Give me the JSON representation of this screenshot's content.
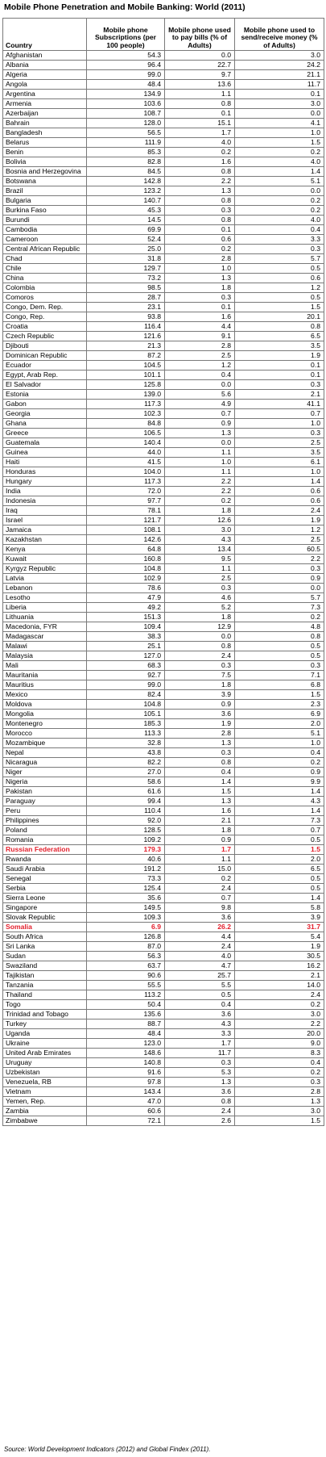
{
  "title": "Mobile Phone Penetration and Mobile Banking: World (2011)",
  "headers": {
    "country": "Country",
    "subs": "Mobile phone Subscriptions (per 100 people)",
    "bills": "Mobile phone used to pay bills (% of Adults)",
    "money": "Mobile phone used to send/receive money (% of Adults)"
  },
  "highlight_color": "#e3202d",
  "rows": [
    {
      "c": "Afghanistan",
      "s": "54.3",
      "b": "0.0",
      "m": "3.0"
    },
    {
      "c": "Albania",
      "s": "96.4",
      "b": "22.7",
      "m": "24.2"
    },
    {
      "c": "Algeria",
      "s": "99.0",
      "b": "9.7",
      "m": "21.1"
    },
    {
      "c": "Angola",
      "s": "48.4",
      "b": "13.6",
      "m": "11.7"
    },
    {
      "c": "Argentina",
      "s": "134.9",
      "b": "1.1",
      "m": "0.1"
    },
    {
      "c": "Armenia",
      "s": "103.6",
      "b": "0.8",
      "m": "3.0"
    },
    {
      "c": "Azerbaijan",
      "s": "108.7",
      "b": "0.1",
      "m": "0.0"
    },
    {
      "c": "Bahrain",
      "s": "128.0",
      "b": "15.1",
      "m": "4.1"
    },
    {
      "c": "Bangladesh",
      "s": "56.5",
      "b": "1.7",
      "m": "1.0"
    },
    {
      "c": "Belarus",
      "s": "111.9",
      "b": "4.0",
      "m": "1.5"
    },
    {
      "c": "Benin",
      "s": "85.3",
      "b": "0.2",
      "m": "0.2"
    },
    {
      "c": "Bolivia",
      "s": "82.8",
      "b": "1.6",
      "m": "4.0"
    },
    {
      "c": "Bosnia and Herzegovina",
      "s": "84.5",
      "b": "0.8",
      "m": "1.4"
    },
    {
      "c": "Botswana",
      "s": "142.8",
      "b": "2.2",
      "m": "5.1"
    },
    {
      "c": "Brazil",
      "s": "123.2",
      "b": "1.3",
      "m": "0.0"
    },
    {
      "c": "Bulgaria",
      "s": "140.7",
      "b": "0.8",
      "m": "0.2"
    },
    {
      "c": "Burkina Faso",
      "s": "45.3",
      "b": "0.3",
      "m": "0.2"
    },
    {
      "c": "Burundi",
      "s": "14.5",
      "b": "0.8",
      "m": "4.0"
    },
    {
      "c": "Cambodia",
      "s": "69.9",
      "b": "0.1",
      "m": "0.4"
    },
    {
      "c": "Cameroon",
      "s": "52.4",
      "b": "0.6",
      "m": "3.3"
    },
    {
      "c": "Central African Republic",
      "s": "25.0",
      "b": "0.2",
      "m": "0.3"
    },
    {
      "c": "Chad",
      "s": "31.8",
      "b": "2.8",
      "m": "5.7"
    },
    {
      "c": "Chile",
      "s": "129.7",
      "b": "1.0",
      "m": "0.5"
    },
    {
      "c": "China",
      "s": "73.2",
      "b": "1.3",
      "m": "0.6"
    },
    {
      "c": "Colombia",
      "s": "98.5",
      "b": "1.8",
      "m": "1.2"
    },
    {
      "c": "Comoros",
      "s": "28.7",
      "b": "0.3",
      "m": "0.5"
    },
    {
      "c": "Congo, Dem. Rep.",
      "s": "23.1",
      "b": "0.1",
      "m": "1.5"
    },
    {
      "c": "Congo, Rep.",
      "s": "93.8",
      "b": "1.6",
      "m": "20.1"
    },
    {
      "c": "Croatia",
      "s": "116.4",
      "b": "4.4",
      "m": "0.8"
    },
    {
      "c": "Czech Republic",
      "s": "121.6",
      "b": "9.1",
      "m": "6.5"
    },
    {
      "c": "Djibouti",
      "s": "21.3",
      "b": "2.8",
      "m": "3.5"
    },
    {
      "c": "Dominican Republic",
      "s": "87.2",
      "b": "2.5",
      "m": "1.9"
    },
    {
      "c": "Ecuador",
      "s": "104.5",
      "b": "1.2",
      "m": "0.1"
    },
    {
      "c": "Egypt, Arab Rep.",
      "s": "101.1",
      "b": "0.4",
      "m": "0.1"
    },
    {
      "c": "El Salvador",
      "s": "125.8",
      "b": "0.0",
      "m": "0.3"
    },
    {
      "c": "Estonia",
      "s": "139.0",
      "b": "5.6",
      "m": "2.1"
    },
    {
      "c": "Gabon",
      "s": "117.3",
      "b": "4.9",
      "m": "41.1"
    },
    {
      "c": "Georgia",
      "s": "102.3",
      "b": "0.7",
      "m": "0.7"
    },
    {
      "c": "Ghana",
      "s": "84.8",
      "b": "0.9",
      "m": "1.0"
    },
    {
      "c": "Greece",
      "s": "106.5",
      "b": "1.3",
      "m": "0.3"
    },
    {
      "c": "Guatemala",
      "s": "140.4",
      "b": "0.0",
      "m": "2.5"
    },
    {
      "c": "Guinea",
      "s": "44.0",
      "b": "1.1",
      "m": "3.5"
    },
    {
      "c": "Haiti",
      "s": "41.5",
      "b": "1.0",
      "m": "6.1"
    },
    {
      "c": "Honduras",
      "s": "104.0",
      "b": "1.1",
      "m": "1.0"
    },
    {
      "c": "Hungary",
      "s": "117.3",
      "b": "2.2",
      "m": "1.4"
    },
    {
      "c": "India",
      "s": "72.0",
      "b": "2.2",
      "m": "0.6"
    },
    {
      "c": "Indonesia",
      "s": "97.7",
      "b": "0.2",
      "m": "0.6"
    },
    {
      "c": "Iraq",
      "s": "78.1",
      "b": "1.8",
      "m": "2.4"
    },
    {
      "c": "Israel",
      "s": "121.7",
      "b": "12.6",
      "m": "1.9"
    },
    {
      "c": "Jamaica",
      "s": "108.1",
      "b": "3.0",
      "m": "1.2"
    },
    {
      "c": "Kazakhstan",
      "s": "142.6",
      "b": "4.3",
      "m": "2.5"
    },
    {
      "c": "Kenya",
      "s": "64.8",
      "b": "13.4",
      "m": "60.5"
    },
    {
      "c": "Kuwait",
      "s": "160.8",
      "b": "9.5",
      "m": "2.2"
    },
    {
      "c": "Kyrgyz Republic",
      "s": "104.8",
      "b": "1.1",
      "m": "0.3"
    },
    {
      "c": "Latvia",
      "s": "102.9",
      "b": "2.5",
      "m": "0.9"
    },
    {
      "c": "Lebanon",
      "s": "78.6",
      "b": "0.3",
      "m": "0.0"
    },
    {
      "c": "Lesotho",
      "s": "47.9",
      "b": "4.6",
      "m": "5.7"
    },
    {
      "c": "Liberia",
      "s": "49.2",
      "b": "5.2",
      "m": "7.3"
    },
    {
      "c": "Lithuania",
      "s": "151.3",
      "b": "1.8",
      "m": "0.2"
    },
    {
      "c": "Macedonia, FYR",
      "s": "109.4",
      "b": "12.9",
      "m": "4.8"
    },
    {
      "c": "Madagascar",
      "s": "38.3",
      "b": "0.0",
      "m": "0.8"
    },
    {
      "c": "Malawi",
      "s": "25.1",
      "b": "0.8",
      "m": "0.5"
    },
    {
      "c": "Malaysia",
      "s": "127.0",
      "b": "2.4",
      "m": "0.5"
    },
    {
      "c": "Mali",
      "s": "68.3",
      "b": "0.3",
      "m": "0.3"
    },
    {
      "c": "Mauritania",
      "s": "92.7",
      "b": "7.5",
      "m": "7.1"
    },
    {
      "c": "Mauritius",
      "s": "99.0",
      "b": "1.8",
      "m": "6.8"
    },
    {
      "c": "Mexico",
      "s": "82.4",
      "b": "3.9",
      "m": "1.5"
    },
    {
      "c": "Moldova",
      "s": "104.8",
      "b": "0.9",
      "m": "2.3"
    },
    {
      "c": "Mongolia",
      "s": "105.1",
      "b": "3.6",
      "m": "6.9"
    },
    {
      "c": "Montenegro",
      "s": "185.3",
      "b": "1.9",
      "m": "2.0"
    },
    {
      "c": "Morocco",
      "s": "113.3",
      "b": "2.8",
      "m": "5.1"
    },
    {
      "c": "Mozambique",
      "s": "32.8",
      "b": "1.3",
      "m": "1.0"
    },
    {
      "c": "Nepal",
      "s": "43.8",
      "b": "0.3",
      "m": "0.4"
    },
    {
      "c": "Nicaragua",
      "s": "82.2",
      "b": "0.8",
      "m": "0.2"
    },
    {
      "c": "Niger",
      "s": "27.0",
      "b": "0.4",
      "m": "0.9"
    },
    {
      "c": "Nigeria",
      "s": "58.6",
      "b": "1.4",
      "m": "9.9"
    },
    {
      "c": "Pakistan",
      "s": "61.6",
      "b": "1.5",
      "m": "1.4"
    },
    {
      "c": "Paraguay",
      "s": "99.4",
      "b": "1.3",
      "m": "4.3"
    },
    {
      "c": "Peru",
      "s": "110.4",
      "b": "1.6",
      "m": "1.4"
    },
    {
      "c": "Philippines",
      "s": "92.0",
      "b": "2.1",
      "m": "7.3"
    },
    {
      "c": "Poland",
      "s": "128.5",
      "b": "1.8",
      "m": "0.7"
    },
    {
      "c": "Romania",
      "s": "109.2",
      "b": "0.9",
      "m": "0.5"
    },
    {
      "c": "Russian Federation",
      "s": "179.3",
      "b": "1.7",
      "m": "1.5",
      "hl": true
    },
    {
      "c": "Rwanda",
      "s": "40.6",
      "b": "1.1",
      "m": "2.0"
    },
    {
      "c": "Saudi Arabia",
      "s": "191.2",
      "b": "15.0",
      "m": "6.5"
    },
    {
      "c": "Senegal",
      "s": "73.3",
      "b": "0.2",
      "m": "0.5"
    },
    {
      "c": "Serbia",
      "s": "125.4",
      "b": "2.4",
      "m": "0.5"
    },
    {
      "c": "Sierra Leone",
      "s": "35.6",
      "b": "0.7",
      "m": "1.4"
    },
    {
      "c": "Singapore",
      "s": "149.5",
      "b": "9.8",
      "m": "5.8"
    },
    {
      "c": "Slovak Republic",
      "s": "109.3",
      "b": "3.6",
      "m": "3.9"
    },
    {
      "c": "Somalia",
      "s": "6.9",
      "b": "26.2",
      "m": "31.7",
      "hl": true
    },
    {
      "c": "South Africa",
      "s": "126.8",
      "b": "4.4",
      "m": "5.4"
    },
    {
      "c": "Sri Lanka",
      "s": "87.0",
      "b": "2.4",
      "m": "1.9"
    },
    {
      "c": "Sudan",
      "s": "56.3",
      "b": "4.0",
      "m": "30.5"
    },
    {
      "c": "Swaziland",
      "s": "63.7",
      "b": "4.7",
      "m": "16.2"
    },
    {
      "c": "Tajikistan",
      "s": "90.6",
      "b": "25.7",
      "m": "2.1"
    },
    {
      "c": "Tanzania",
      "s": "55.5",
      "b": "5.5",
      "m": "14.0"
    },
    {
      "c": "Thailand",
      "s": "113.2",
      "b": "0.5",
      "m": "2.4"
    },
    {
      "c": "Togo",
      "s": "50.4",
      "b": "0.4",
      "m": "0.2"
    },
    {
      "c": "Trinidad and Tobago",
      "s": "135.6",
      "b": "3.6",
      "m": "3.0"
    },
    {
      "c": "Turkey",
      "s": "88.7",
      "b": "4.3",
      "m": "2.2"
    },
    {
      "c": "Uganda",
      "s": "48.4",
      "b": "3.3",
      "m": "20.0"
    },
    {
      "c": "Ukraine",
      "s": "123.0",
      "b": "1.7",
      "m": "9.0"
    },
    {
      "c": "United Arab Emirates",
      "s": "148.6",
      "b": "11.7",
      "m": "8.3"
    },
    {
      "c": "Uruguay",
      "s": "140.8",
      "b": "0.3",
      "m": "0.4"
    },
    {
      "c": "Uzbekistan",
      "s": "91.6",
      "b": "5.3",
      "m": "0.2"
    },
    {
      "c": "Venezuela, RB",
      "s": "97.8",
      "b": "1.3",
      "m": "0.3"
    },
    {
      "c": "Vietnam",
      "s": "143.4",
      "b": "3.6",
      "m": "2.8"
    },
    {
      "c": "Yemen, Rep.",
      "s": "47.0",
      "b": "0.8",
      "m": "1.3"
    },
    {
      "c": "Zambia",
      "s": "60.6",
      "b": "2.4",
      "m": "3.0"
    },
    {
      "c": "Zimbabwe",
      "s": "72.1",
      "b": "2.6",
      "m": "1.5"
    }
  ],
  "source": "Source: World Development Indicators (2012) and Global Findex (2011)."
}
